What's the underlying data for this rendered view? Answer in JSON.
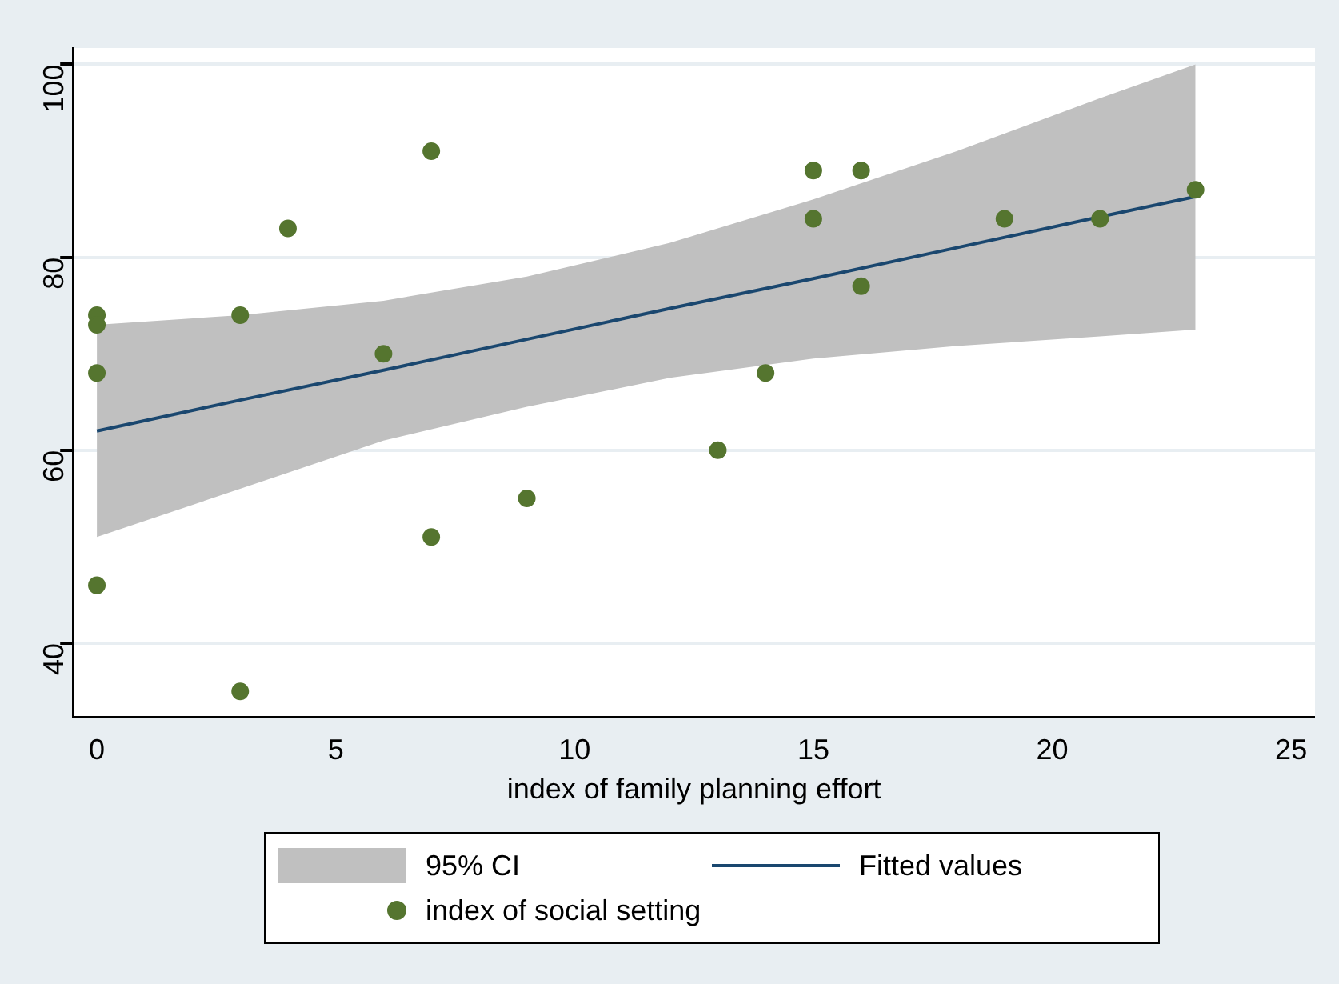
{
  "chart_data": {
    "type": "scatter",
    "xlabel": "index of family planning effort",
    "xlim": [
      -0.5,
      25.5
    ],
    "ylim": [
      32.4,
      101.7
    ],
    "xticks": [
      0,
      5,
      10,
      15,
      20,
      25
    ],
    "yticks": [
      40,
      60,
      80,
      100
    ],
    "grid": "y",
    "legend": "bottom",
    "annotations": [
      "95% CI"
    ],
    "series": [
      {
        "name": "Fitted values",
        "type": "line",
        "color": "#1a476f",
        "x": [
          0,
          3,
          6,
          9,
          12,
          15,
          18,
          21,
          23
        ],
        "values": [
          62,
          65.2,
          68.3,
          71.5,
          74.7,
          77.8,
          81,
          84.2,
          86.3
        ],
        "lower": [
          51,
          56,
          61,
          64.5,
          67.5,
          69.5,
          70.8,
          71.8,
          72.5
        ],
        "upper": [
          73,
          74,
          75.5,
          78,
          81.5,
          86,
          91,
          96.5,
          100
        ]
      },
      {
        "name": "index of social setting",
        "color": "#55752f",
        "marker": "circle",
        "x": [
          0,
          0,
          0,
          0,
          3,
          3,
          4,
          6,
          7,
          7,
          9,
          13,
          14,
          15,
          15,
          16,
          16,
          19,
          21,
          23
        ],
        "values": [
          74,
          73,
          68,
          46,
          74,
          35,
          83,
          70,
          91,
          51,
          55,
          60,
          68,
          89,
          84,
          89,
          77,
          84,
          84,
          87
        ]
      }
    ]
  }
}
